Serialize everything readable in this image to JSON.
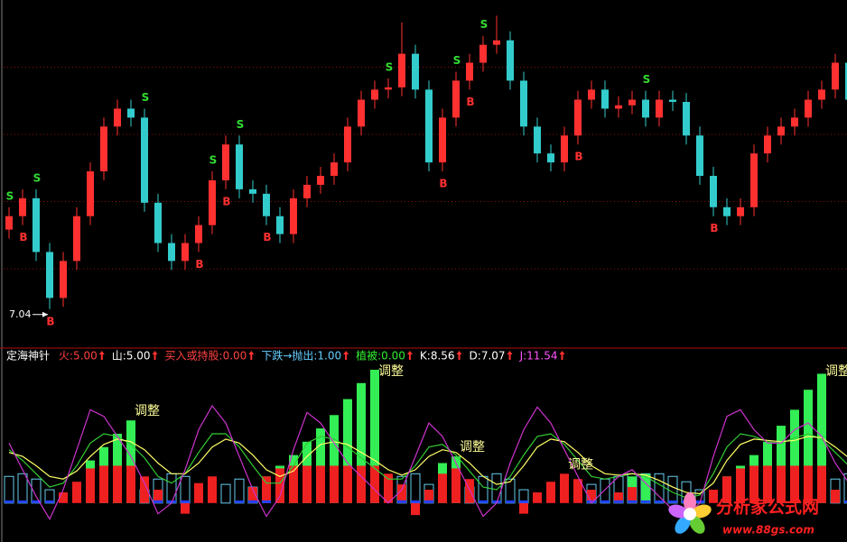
{
  "chart_data": [
    {
      "type": "candlestick",
      "open": [
        7.75,
        7.87,
        8.03,
        7.55,
        7.14,
        7.47,
        7.87,
        8.27,
        8.67,
        8.83,
        8.75,
        7.99,
        7.63,
        7.47,
        7.63,
        7.79,
        8.19,
        8.51,
        8.11,
        8.07,
        7.87,
        7.71,
        8.03,
        8.15,
        8.23,
        8.35,
        8.67,
        8.91,
        9.0,
        9.02,
        9.32,
        9.0,
        8.35,
        8.75,
        9.08,
        9.24,
        9.4,
        9.44,
        9.08,
        8.67,
        8.43,
        8.35,
        8.59,
        8.91,
        9.0,
        8.83,
        8.86,
        8.91,
        8.75,
        8.91,
        8.89,
        8.59,
        8.23,
        7.95,
        7.87,
        7.95,
        8.43,
        8.59,
        8.67,
        8.75,
        8.91,
        9.0,
        9.24,
        8.91
      ],
      "high": [
        7.95,
        8.11,
        8.11,
        7.63,
        7.55,
        7.95,
        8.35,
        8.75,
        8.91,
        8.91,
        8.83,
        8.07,
        7.71,
        7.71,
        7.87,
        8.27,
        8.59,
        8.59,
        8.19,
        8.15,
        7.95,
        8.11,
        8.23,
        8.31,
        8.43,
        8.75,
        8.99,
        9.08,
        9.1,
        9.6,
        9.4,
        9.08,
        8.83,
        9.16,
        9.32,
        9.48,
        9.66,
        9.52,
        9.16,
        8.75,
        8.51,
        8.67,
        8.99,
        9.08,
        9.08,
        8.94,
        8.99,
        8.99,
        8.99,
        8.99,
        8.97,
        8.67,
        8.31,
        8.03,
        8.03,
        8.51,
        8.67,
        8.75,
        8.83,
        8.99,
        9.08,
        9.32,
        9.32,
        8.99
      ],
      "low": [
        7.67,
        7.79,
        7.47,
        7.04,
        7.06,
        7.39,
        7.79,
        8.19,
        8.59,
        8.67,
        7.91,
        7.55,
        7.39,
        7.39,
        7.55,
        7.71,
        8.11,
        8.03,
        7.99,
        7.79,
        7.63,
        7.63,
        7.95,
        8.07,
        8.15,
        8.27,
        8.59,
        8.83,
        8.92,
        8.94,
        8.92,
        8.27,
        8.27,
        8.67,
        9.0,
        9.16,
        9.32,
        9.0,
        8.59,
        8.35,
        8.27,
        8.27,
        8.51,
        8.83,
        8.75,
        8.75,
        8.78,
        8.67,
        8.67,
        8.81,
        8.51,
        8.15,
        7.87,
        7.79,
        7.79,
        7.87,
        8.35,
        8.51,
        8.59,
        8.67,
        8.83,
        8.92,
        8.83,
        8.75
      ],
      "close": [
        7.87,
        8.03,
        7.55,
        7.14,
        7.47,
        7.87,
        8.27,
        8.67,
        8.83,
        8.75,
        7.99,
        7.63,
        7.47,
        7.63,
        7.79,
        8.19,
        8.51,
        8.11,
        8.07,
        7.87,
        7.71,
        8.03,
        8.15,
        8.23,
        8.35,
        8.67,
        8.91,
        9.0,
        9.02,
        9.32,
        9.0,
        8.35,
        8.75,
        9.08,
        9.24,
        9.4,
        9.44,
        9.08,
        8.67,
        8.43,
        8.35,
        8.59,
        8.91,
        9.0,
        8.83,
        8.86,
        8.91,
        8.75,
        8.91,
        8.89,
        8.59,
        8.23,
        7.95,
        7.87,
        7.95,
        8.43,
        8.59,
        8.67,
        8.75,
        8.91,
        9.0,
        9.24,
        8.91,
        8.83
      ],
      "signals": [
        "S",
        "B",
        "S",
        "B",
        null,
        null,
        null,
        null,
        null,
        null,
        "S",
        null,
        null,
        null,
        "B",
        "S",
        "B",
        "S",
        null,
        "B",
        null,
        null,
        null,
        null,
        null,
        null,
        null,
        null,
        "S",
        null,
        null,
        null,
        "B",
        "S",
        "B",
        "S",
        null,
        null,
        null,
        null,
        null,
        null,
        "B",
        null,
        null,
        null,
        null,
        "S",
        null,
        null,
        null,
        null,
        "B",
        null,
        null,
        null,
        null,
        null,
        null,
        null,
        null,
        null,
        null,
        null
      ],
      "signal_colors": {
        "S": "#33dd33",
        "B": "#ff3030"
      },
      "up_color": "#ff3030",
      "down_color": "#33cccc",
      "ylim": [
        6.7,
        9.8
      ],
      "grid_lines": [
        7.4,
        8.0,
        8.6,
        9.2
      ],
      "grid_color": "#8a1010"
    },
    {
      "type": "indicator",
      "title": "定海神针",
      "legend": [
        {
          "text": "火:5.00",
          "color": "#ff4040"
        },
        {
          "text": "山:5.00",
          "color": "#ffffff"
        },
        {
          "text": "买入或持股:0.00",
          "color": "#ff4040"
        },
        {
          "text": "下跌→抛出:1.00",
          "color": "#66ccff"
        },
        {
          "text": "植被:0.00",
          "color": "#33ee33"
        },
        {
          "text": "K:8.56",
          "color": "#ffffff"
        },
        {
          "text": "D:7.07",
          "color": "#ffffff"
        },
        {
          "text": "J:11.54",
          "color": "#ff55ff"
        }
      ],
      "arrow_color": "#ff3030",
      "ylim": [
        -15,
        100
      ],
      "series": [
        {
          "kind": "bar",
          "style": "outline",
          "color": "#66ccee",
          "values": [
            20,
            22,
            18,
            10,
            0,
            0,
            0,
            0,
            0,
            0,
            10,
            18,
            22,
            20,
            0,
            0,
            14,
            18,
            12,
            0,
            0,
            0,
            0,
            0,
            0,
            0,
            0,
            0,
            0,
            20,
            22,
            14,
            0,
            0,
            12,
            20,
            22,
            18,
            10,
            0,
            0,
            0,
            0,
            14,
            18,
            20,
            22,
            22,
            22,
            20,
            16,
            10,
            0,
            0,
            0,
            0,
            0,
            0,
            0,
            0,
            0,
            18,
            22,
            20
          ]
        },
        {
          "kind": "bar",
          "style": "fill",
          "color": "#33ee55",
          "values": [
            0,
            0,
            0,
            0,
            0,
            0,
            32,
            42,
            52,
            62,
            0,
            0,
            0,
            0,
            0,
            0,
            0,
            0,
            0,
            20,
            28,
            36,
            46,
            56,
            66,
            78,
            90,
            100,
            0,
            0,
            0,
            0,
            30,
            35,
            0,
            0,
            0,
            0,
            0,
            0,
            0,
            0,
            0,
            0,
            0,
            0,
            20,
            22,
            0,
            0,
            0,
            0,
            0,
            20,
            28,
            36,
            46,
            58,
            70,
            85,
            97,
            0,
            0,
            0
          ]
        },
        {
          "kind": "bar",
          "style": "fill",
          "color": "#ee2020",
          "values": [
            0,
            0,
            0,
            0,
            8,
            16,
            26,
            28,
            28,
            28,
            20,
            10,
            0,
            -8,
            15,
            20,
            0,
            0,
            12,
            20,
            26,
            28,
            28,
            28,
            28,
            28,
            28,
            28,
            22,
            14,
            -9,
            10,
            22,
            26,
            18,
            0,
            0,
            0,
            -8,
            8,
            16,
            22,
            18,
            10,
            0,
            8,
            12,
            0,
            0,
            0,
            0,
            0,
            10,
            20,
            26,
            28,
            28,
            28,
            28,
            28,
            28,
            10,
            0,
            0
          ]
        },
        {
          "kind": "bar",
          "style": "fill",
          "color": "#2040ff",
          "values": [
            2,
            2,
            2,
            2,
            0,
            0,
            0,
            0,
            0,
            0,
            0,
            2,
            2,
            2,
            0,
            0,
            0,
            2,
            2,
            2,
            0,
            0,
            0,
            0,
            0,
            0,
            0,
            0,
            0,
            2,
            2,
            2,
            0,
            0,
            0,
            2,
            2,
            2,
            2,
            0,
            0,
            0,
            0,
            2,
            2,
            2,
            2,
            2,
            2,
            2,
            2,
            2,
            0,
            0,
            0,
            0,
            0,
            0,
            0,
            0,
            0,
            0,
            2,
            2
          ]
        },
        {
          "kind": "line",
          "color": "#33cc33",
          "values": [
            40,
            32,
            22,
            12,
            15,
            28,
            45,
            52,
            50,
            44,
            34,
            20,
            15,
            22,
            38,
            52,
            52,
            42,
            28,
            15,
            15,
            28,
            45,
            50,
            48,
            42,
            34,
            26,
            18,
            18,
            28,
            42,
            44,
            36,
            24,
            12,
            10,
            20,
            36,
            50,
            52,
            44,
            32,
            20,
            18,
            20,
            22,
            20,
            14,
            8,
            4,
            6,
            22,
            42,
            52,
            50,
            46,
            45,
            49,
            52,
            48,
            38,
            28,
            22
          ]
        },
        {
          "kind": "line",
          "color": "#ffff66",
          "values": [
            38,
            35,
            28,
            20,
            18,
            24,
            35,
            44,
            48,
            46,
            40,
            30,
            22,
            22,
            30,
            42,
            48,
            45,
            36,
            25,
            20,
            24,
            35,
            44,
            46,
            44,
            38,
            32,
            25,
            21,
            25,
            35,
            40,
            38,
            30,
            20,
            14,
            16,
            28,
            42,
            48,
            46,
            38,
            28,
            22,
            21,
            22,
            21,
            17,
            12,
            8,
            7,
            15,
            32,
            44,
            48,
            47,
            46,
            47,
            50,
            49,
            42,
            34,
            27
          ]
        },
        {
          "kind": "line",
          "color": "#cc33cc",
          "values": [
            45,
            25,
            5,
            -12,
            10,
            40,
            70,
            65,
            50,
            35,
            15,
            -8,
            0,
            25,
            55,
            73,
            60,
            35,
            10,
            -10,
            5,
            40,
            68,
            60,
            45,
            30,
            20,
            10,
            0,
            10,
            35,
            60,
            50,
            30,
            10,
            -10,
            0,
            30,
            55,
            72,
            60,
            40,
            20,
            0,
            10,
            20,
            25,
            15,
            5,
            -5,
            -10,
            0,
            35,
            65,
            70,
            55,
            45,
            45,
            55,
            60,
            50,
            30,
            15,
            10
          ]
        }
      ],
      "annotations": [
        null,
        null,
        null,
        null,
        null,
        null,
        null,
        null,
        null,
        "调整",
        null,
        null,
        null,
        null,
        null,
        null,
        null,
        null,
        null,
        null,
        null,
        null,
        null,
        null,
        null,
        null,
        null,
        "调整",
        null,
        null,
        null,
        null,
        null,
        "调整",
        null,
        null,
        null,
        null,
        null,
        null,
        null,
        "调整",
        null,
        null,
        null,
        null,
        null,
        null,
        null,
        null,
        null,
        null,
        null,
        null,
        null,
        null,
        null,
        null,
        null,
        null,
        "调整",
        null,
        null,
        null
      ],
      "annotation_color": "#ffff99"
    }
  ],
  "watermark": {
    "name": "分析家公式网",
    "url": "www.88gs.com",
    "color": "#ff2020"
  }
}
